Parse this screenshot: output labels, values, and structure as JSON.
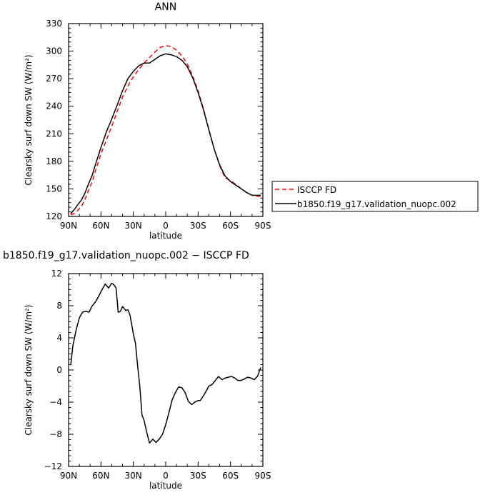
{
  "chart_data": [
    {
      "type": "line",
      "title": "ANN",
      "xlabel": "latitude",
      "ylabel": "Clearsky surf down SW (W/m²)",
      "xlim": [
        -90,
        90
      ],
      "ylim": [
        120,
        330
      ],
      "x_tick_values": [
        -90,
        -60,
        -30,
        0,
        30,
        60,
        90
      ],
      "x_tick_labels": [
        "90N",
        "60N",
        "30N",
        "0",
        "30S",
        "60S",
        "90S"
      ],
      "y_tick_values": [
        120,
        150,
        180,
        210,
        240,
        270,
        300,
        330
      ],
      "y_tick_labels": [
        "120",
        "150",
        "180",
        "210",
        "240",
        "270",
        "300",
        "330"
      ],
      "legend_position": "right",
      "series": [
        {
          "name": "ISCCP FD",
          "color": "#ff0000",
          "dash": "dashed",
          "x": [
            -88,
            -85,
            -82,
            -78,
            -75,
            -72,
            -68,
            -65,
            -60,
            -55,
            -50,
            -45,
            -40,
            -35,
            -30,
            -25,
            -20,
            -15,
            -10,
            -5,
            0,
            5,
            10,
            15,
            20,
            25,
            30,
            35,
            40,
            45,
            50,
            55,
            60,
            65,
            70,
            75,
            80,
            85,
            88
          ],
          "y": [
            122,
            123,
            126,
            131,
            138,
            147,
            158,
            170,
            188,
            203,
            218,
            234,
            250,
            262,
            272,
            280,
            287,
            293,
            299,
            304,
            306,
            305,
            301,
            295,
            286,
            273,
            257,
            237,
            215,
            193,
            175,
            162,
            159,
            155,
            150,
            146,
            143,
            142,
            142
          ]
        },
        {
          "name": "b1850.f19_g17.validation_nuopc.002",
          "color": "#000000",
          "dash": "solid",
          "x": [
            -88,
            -85,
            -82,
            -78,
            -75,
            -72,
            -68,
            -65,
            -60,
            -55,
            -50,
            -45,
            -40,
            -35,
            -30,
            -25,
            -20,
            -15,
            -10,
            -5,
            0,
            5,
            10,
            15,
            20,
            25,
            30,
            35,
            40,
            45,
            50,
            55,
            60,
            65,
            70,
            75,
            80,
            85,
            88
          ],
          "y": [
            123,
            127,
            132,
            138,
            145,
            154,
            165,
            177,
            195,
            212,
            226,
            241,
            257,
            270,
            278,
            284,
            287,
            287,
            291,
            295,
            297,
            296,
            294,
            290,
            283,
            271,
            255,
            236,
            214,
            193,
            176,
            164,
            158,
            154,
            150,
            146,
            143,
            143,
            143
          ]
        }
      ]
    },
    {
      "type": "line",
      "title": "b1850.f19_g17.validation_nuopc.002 − ISCCP FD",
      "xlabel": "latitude",
      "ylabel": "Clearsky surf down SW (W/m²)",
      "xlim": [
        -90,
        90
      ],
      "ylim": [
        -12,
        12
      ],
      "x_tick_values": [
        -90,
        -60,
        -30,
        0,
        30,
        60,
        90
      ],
      "x_tick_labels": [
        "90N",
        "60N",
        "30N",
        "0",
        "30S",
        "60S",
        "90S"
      ],
      "y_tick_values": [
        -12,
        -8,
        -4,
        0,
        4,
        8,
        12
      ],
      "y_tick_labels": [
        "−12",
        "−8",
        "−4",
        "0",
        "4",
        "8",
        "12"
      ],
      "series": [
        {
          "color": "#000000",
          "dash": "solid",
          "x": [
            -88,
            -86,
            -83,
            -80,
            -77,
            -74,
            -71,
            -68,
            -65,
            -62,
            -59,
            -56,
            -53,
            -50,
            -48,
            -46,
            -44,
            -42,
            -40,
            -37,
            -35,
            -33,
            -30,
            -28,
            -26,
            -24,
            -22,
            -20,
            -18,
            -15,
            -12,
            -9,
            -6,
            -3,
            0,
            3,
            6,
            9,
            12,
            15,
            18,
            21,
            24,
            27,
            30,
            32,
            35,
            38,
            40,
            43,
            46,
            49,
            52,
            55,
            58,
            61,
            64,
            67,
            70,
            73,
            76,
            79,
            82,
            85,
            88
          ],
          "y": [
            0.6,
            3.0,
            5.0,
            6.5,
            7.2,
            7.3,
            7.2,
            8.0,
            8.5,
            9.2,
            10.0,
            10.7,
            10.2,
            10.8,
            10.6,
            10.2,
            7.2,
            7.3,
            7.9,
            7.4,
            7.5,
            6.8,
            4.5,
            3.3,
            0.5,
            -2.0,
            -5.6,
            -6.3,
            -7.5,
            -9.1,
            -8.6,
            -9.0,
            -8.6,
            -8.0,
            -6.8,
            -5.3,
            -3.7,
            -2.8,
            -2.1,
            -2.2,
            -2.8,
            -3.9,
            -4.3,
            -4.0,
            -3.8,
            -3.8,
            -3.2,
            -2.5,
            -2.0,
            -1.8,
            -1.3,
            -0.8,
            -1.2,
            -1.0,
            -0.9,
            -0.8,
            -1.0,
            -1.3,
            -1.3,
            -1.1,
            -0.9,
            -1.0,
            -1.2,
            -0.8,
            0.3
          ]
        }
      ]
    }
  ]
}
